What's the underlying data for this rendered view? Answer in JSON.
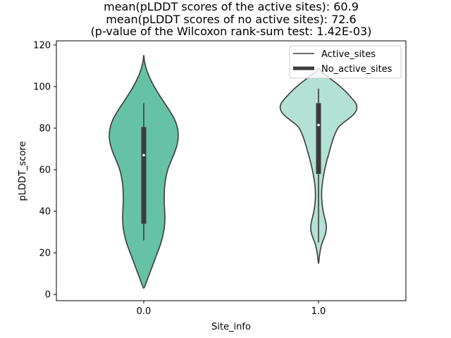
{
  "chart_data": {
    "type": "violin",
    "title_lines": [
      "mean(pLDDT scores of the active sites): 60.9",
      "mean(pLDDT scores of no active sites): 72.6",
      "(p-value of the Wilcoxon rank-sum test: 1.42E-03)"
    ],
    "xlabel": "Site_info",
    "ylabel": "pLDDT_score",
    "categories": [
      "0.0",
      "1.0"
    ],
    "ylim": [
      -3,
      122
    ],
    "yticks": [
      0,
      20,
      40,
      60,
      80,
      100,
      120
    ],
    "colors": {
      "active": "#66c2a5",
      "no_active": "#b3e2d5",
      "outline": "#3b3b3b",
      "median": "#ffffff"
    },
    "legend": {
      "position": "top-right",
      "entries": [
        "Active_sites",
        "No_active_sites"
      ]
    },
    "series": [
      {
        "name": "0.0",
        "color": "#66c2a5",
        "box": {
          "q1": 34,
          "median": 67,
          "q3": 80.5,
          "whisker_low": 26,
          "whisker_high": 92
        },
        "density_profile": [
          [
            115,
            0.0
          ],
          [
            112,
            0.02
          ],
          [
            108,
            0.075
          ],
          [
            104,
            0.16
          ],
          [
            100,
            0.27
          ],
          [
            96,
            0.4
          ],
          [
            92,
            0.54
          ],
          [
            88,
            0.68
          ],
          [
            84,
            0.8
          ],
          [
            80,
            0.87
          ],
          [
            76,
            0.89
          ],
          [
            72,
            0.86
          ],
          [
            68,
            0.79
          ],
          [
            64,
            0.7
          ],
          [
            60,
            0.62
          ],
          [
            56,
            0.57
          ],
          [
            52,
            0.54
          ],
          [
            48,
            0.53
          ],
          [
            44,
            0.53
          ],
          [
            40,
            0.54
          ],
          [
            36,
            0.545
          ],
          [
            32,
            0.53
          ],
          [
            28,
            0.49
          ],
          [
            24,
            0.43
          ],
          [
            20,
            0.35
          ],
          [
            16,
            0.27
          ],
          [
            12,
            0.19
          ],
          [
            8,
            0.11
          ],
          [
            5,
            0.05
          ],
          [
            3,
            0.0
          ]
        ]
      },
      {
        "name": "1.0",
        "color": "#b3e2d5",
        "box": {
          "q1": 58,
          "median": 81.5,
          "q3": 92,
          "whisker_low": 25,
          "whisker_high": 99
        },
        "density_profile": [
          [
            109,
            0.0
          ],
          [
            107,
            0.08
          ],
          [
            104,
            0.29
          ],
          [
            101,
            0.5
          ],
          [
            98,
            0.68
          ],
          [
            95,
            0.83
          ],
          [
            92,
            0.96
          ],
          [
            90,
            0.99
          ],
          [
            88,
            0.96
          ],
          [
            86,
            0.87
          ],
          [
            84,
            0.74
          ],
          [
            82,
            0.6
          ],
          [
            80,
            0.5
          ],
          [
            76,
            0.4
          ],
          [
            72,
            0.33
          ],
          [
            68,
            0.27
          ],
          [
            64,
            0.21
          ],
          [
            60,
            0.16
          ],
          [
            56,
            0.12
          ],
          [
            52,
            0.09
          ],
          [
            48,
            0.08
          ],
          [
            44,
            0.09
          ],
          [
            40,
            0.12
          ],
          [
            36,
            0.17
          ],
          [
            33,
            0.2
          ],
          [
            30,
            0.19
          ],
          [
            27,
            0.14
          ],
          [
            24,
            0.08
          ],
          [
            20,
            0.035
          ],
          [
            17,
            0.015
          ],
          [
            15,
            0.0
          ]
        ]
      }
    ]
  }
}
